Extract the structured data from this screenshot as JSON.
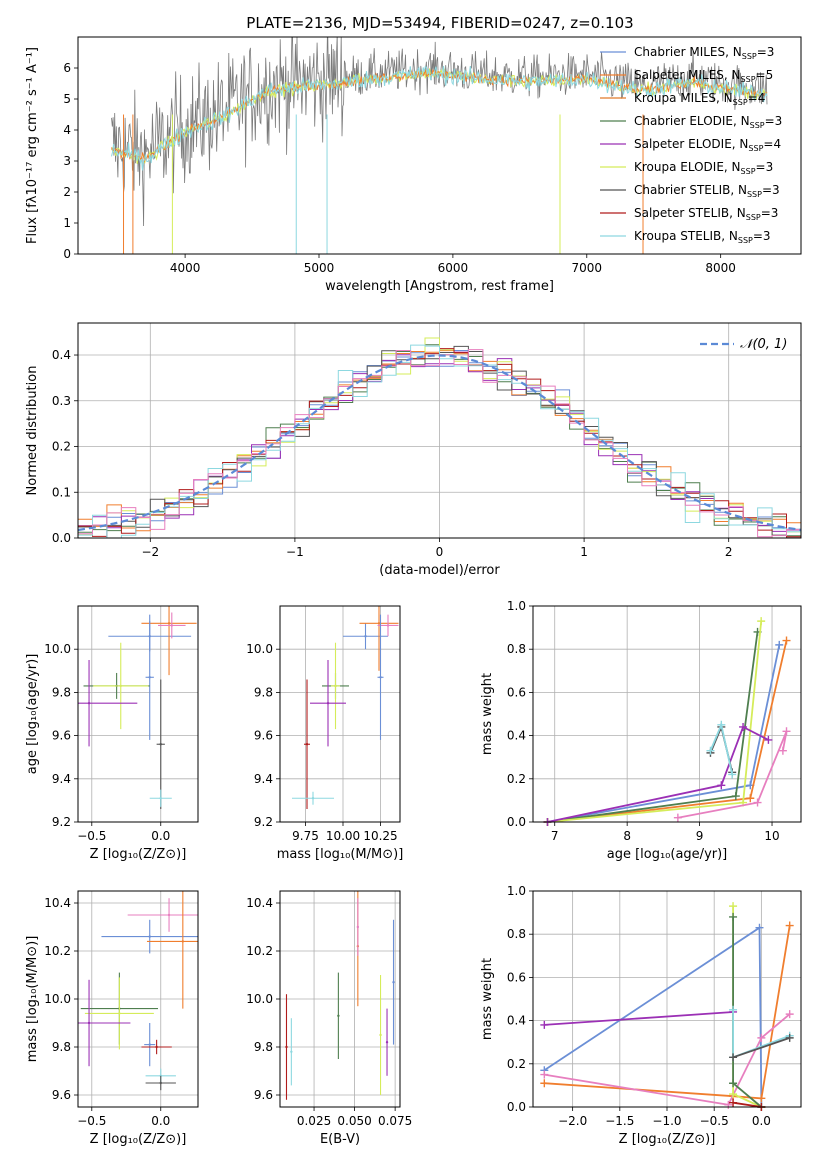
{
  "figure_title": "PLATE=2136, MJD=53494, FIBERID=0247, z=0.103",
  "colors": {
    "Chabrier MILES": "#6b8fd6",
    "Salpeter MILES": "#f07e2e",
    "Kroupa MILES": "#e07b2a",
    "Chabrier ELODIE": "#4f7f4f",
    "Salpeter ELODIE": "#9b30b5",
    "Kroupa ELODIE": "#d5ec5a",
    "Chabrier STELIB": "#555555",
    "Salpeter STELIB": "#b01c1c",
    "Kroupa STELIB": "#8dd8e0",
    "pink": "#e77fbf",
    "cyan": "#6fd3d8",
    "grid": "#b0b0b0"
  },
  "legend_entries": [
    {
      "label": "Chabrier MILES, N",
      "sub": "SSP",
      "eq": "=3",
      "color": "#6b8fd6"
    },
    {
      "label": "Salpeter MILES, N",
      "sub": "SSP",
      "eq": "=5",
      "color": "#f07e2e"
    },
    {
      "label": "Kroupa MILES, N",
      "sub": "SSP",
      "eq": "=4",
      "color": "#e07b2a"
    },
    {
      "label": "Chabrier ELODIE, N",
      "sub": "SSP",
      "eq": "=3",
      "color": "#4f7f4f"
    },
    {
      "label": "Salpeter ELODIE, N",
      "sub": "SSP",
      "eq": "=4",
      "color": "#9b30b5"
    },
    {
      "label": "Kroupa ELODIE, N",
      "sub": "SSP",
      "eq": "=3",
      "color": "#d5ec5a"
    },
    {
      "label": "Chabrier STELIB, N",
      "sub": "SSP",
      "eq": "=3",
      "color": "#555555"
    },
    {
      "label": "Salpeter STELIB, N",
      "sub": "SSP",
      "eq": "=3",
      "color": "#b01c1c"
    },
    {
      "label": "Kroupa STELIB, N",
      "sub": "SSP",
      "eq": "=3",
      "color": "#8dd8e0"
    }
  ],
  "hist_legend": "𝒩(0, 1)",
  "chart_data": [
    {
      "id": "spectrum",
      "type": "line",
      "xlabel": "wavelength [Angstrom, rest frame]",
      "ylabel": "Flux [fλ10⁻¹⁷ erg cm⁻² s⁻¹ A⁻¹]",
      "xlim": [
        3200,
        8600
      ],
      "ylim": [
        0,
        7
      ],
      "xticks": [
        4000,
        5000,
        6000,
        7000,
        8000
      ],
      "yticks": [
        0,
        1,
        2,
        3,
        4,
        5,
        6
      ],
      "grid": false,
      "continuum": {
        "x": [
          3450,
          3700,
          4000,
          4300,
          4600,
          5000,
          5400,
          5800,
          6200,
          6600,
          7000,
          7400,
          7800,
          8000,
          8350
        ],
        "y": [
          3.5,
          3.2,
          4.1,
          4.6,
          5.4,
          5.6,
          5.8,
          6.0,
          5.8,
          5.7,
          5.8,
          5.4,
          5.7,
          5.5,
          5.3
        ]
      },
      "range_x": [
        3450,
        8350
      ]
    },
    {
      "id": "residuals",
      "type": "line",
      "xlabel": "(data-model)/error",
      "ylabel": "Normed distribution",
      "xlim": [
        -2.5,
        2.5
      ],
      "ylim": [
        0,
        0.47
      ],
      "xticks": [
        -2,
        -1,
        0,
        1,
        2
      ],
      "yticks": [
        0.0,
        0.1,
        0.2,
        0.3,
        0.4
      ],
      "xtick_labels": [
        "−2",
        "−1",
        "0",
        "1",
        "2"
      ],
      "ytick_labels": [
        "0.0",
        "0.1",
        "0.2",
        "0.3",
        "0.4"
      ],
      "grid": true,
      "legend": "top-right"
    },
    {
      "id": "z_age",
      "type": "scatter",
      "xlabel": "Z [log₁₀(Z/Z⊙)]",
      "ylabel": "age  [log₁₀(age/yr)]",
      "xlim": [
        -0.6,
        0.27
      ],
      "ylim": [
        9.2,
        10.2
      ],
      "xticks": [
        -0.5,
        0.0
      ],
      "yticks": [
        9.2,
        9.4,
        9.6,
        9.8,
        10.0
      ],
      "xtick_labels": [
        "−0.5",
        "0.0"
      ],
      "ytick_labels": [
        "9.2",
        "9.4",
        "9.6",
        "9.8",
        "10.0"
      ],
      "grid": true,
      "points": [
        {
          "x": -0.08,
          "y": 10.06,
          "xerr": 0.3,
          "yerr": 0.07,
          "c": "#6b8fd6"
        },
        {
          "x": 0.06,
          "y": 10.12,
          "xerr": 0.2,
          "yerr": 0.24,
          "c": "#f07e2e"
        },
        {
          "x": 0.08,
          "y": 10.11,
          "xerr": 0.1,
          "yerr": 0.06,
          "c": "#e77fbf"
        },
        {
          "x": -0.08,
          "y": 9.87,
          "xerr": 0.03,
          "yerr": 0.29,
          "c": "#6b8fd6"
        },
        {
          "x": -0.32,
          "y": 9.83,
          "xerr": 0.24,
          "yerr": 0.06,
          "c": "#4f7f4f"
        },
        {
          "x": -0.29,
          "y": 9.83,
          "xerr": 0.2,
          "yerr": 0.2,
          "c": "#d5ec5a"
        },
        {
          "x": -0.52,
          "y": 9.75,
          "xerr": 0.35,
          "yerr": 0.2,
          "c": "#9b30b5"
        },
        {
          "x": 0.0,
          "y": 9.56,
          "xerr": 0.03,
          "yerr": 0.3,
          "c": "#555555"
        },
        {
          "x": 0.0,
          "y": 9.31,
          "xerr": 0.08,
          "yerr": 0.04,
          "c": "#8dd8e0"
        }
      ]
    },
    {
      "id": "mass_age",
      "type": "scatter",
      "xlabel": "mass [log₁₀(M/M⊙)]",
      "ylabel": "",
      "xlim": [
        9.58,
        10.38
      ],
      "ylim": [
        9.2,
        10.2
      ],
      "xticks": [
        9.75,
        10.0,
        10.25
      ],
      "yticks": [
        9.2,
        9.4,
        9.6,
        9.8,
        10.0
      ],
      "xtick_labels": [
        "9.75",
        "10.00",
        "10.25"
      ],
      "ytick_labels": [
        "9.2",
        "9.4",
        "9.6",
        "9.8",
        "10.0"
      ],
      "grid": true,
      "points": [
        {
          "x": 10.15,
          "y": 10.06,
          "xerr": 0.15,
          "yerr": 0.06,
          "c": "#6b8fd6"
        },
        {
          "x": 10.24,
          "y": 10.12,
          "xerr": 0.13,
          "yerr": 0.22,
          "c": "#f07e2e"
        },
        {
          "x": 10.3,
          "y": 10.11,
          "xerr": 0.07,
          "yerr": 0.05,
          "c": "#e77fbf"
        },
        {
          "x": 10.25,
          "y": 9.87,
          "xerr": 0.02,
          "yerr": 0.29,
          "c": "#6b8fd6"
        },
        {
          "x": 9.95,
          "y": 9.83,
          "xerr": 0.09,
          "yerr": 0.06,
          "c": "#4f7f4f"
        },
        {
          "x": 9.95,
          "y": 9.83,
          "xerr": 0.03,
          "yerr": 0.2,
          "c": "#d5ec5a"
        },
        {
          "x": 9.9,
          "y": 9.75,
          "xerr": 0.12,
          "yerr": 0.2,
          "c": "#9b30b5"
        },
        {
          "x": 9.76,
          "y": 9.56,
          "xerr": 0.02,
          "yerr": 0.3,
          "c": "#b01c1c"
        },
        {
          "x": 9.8,
          "y": 9.31,
          "xerr": 0.14,
          "yerr": 0.03,
          "c": "#8dd8e0"
        }
      ]
    },
    {
      "id": "age_weight",
      "type": "line",
      "xlabel": "age  [log₁₀(age/yr)]",
      "ylabel": "mass weight",
      "xlim": [
        6.7,
        10.4
      ],
      "ylim": [
        0,
        1.0
      ],
      "xticks": [
        7,
        8,
        9,
        10
      ],
      "yticks": [
        0.0,
        0.2,
        0.4,
        0.6,
        0.8,
        1.0
      ],
      "xtick_labels": [
        "7",
        "8",
        "9",
        "10"
      ],
      "ytick_labels": [
        "0.0",
        "0.2",
        "0.4",
        "0.6",
        "0.8",
        "1.0"
      ],
      "grid": true,
      "series": [
        {
          "c": "#6b8fd6",
          "x": [
            6.9,
            9.7,
            10.1
          ],
          "y": [
            0.0,
            0.17,
            0.82
          ]
        },
        {
          "c": "#f07e2e",
          "x": [
            6.9,
            9.7,
            10.2
          ],
          "y": [
            0.0,
            0.11,
            0.84
          ]
        },
        {
          "c": "#4f7f4f",
          "x": [
            6.9,
            9.5,
            9.8
          ],
          "y": [
            0.0,
            0.12,
            0.88
          ]
        },
        {
          "c": "#d5ec5a",
          "x": [
            6.9,
            9.6,
            9.85
          ],
          "y": [
            0.0,
            0.09,
            0.93
          ]
        },
        {
          "c": "#9b30b5",
          "x": [
            6.9,
            9.3,
            9.6,
            9.95
          ],
          "y": [
            0.0,
            0.17,
            0.44,
            0.38
          ]
        },
        {
          "c": "#e77fbf",
          "x": [
            8.7,
            9.8,
            10.2,
            10.15
          ],
          "y": [
            0.02,
            0.09,
            0.42,
            0.33
          ]
        },
        {
          "c": "#555555",
          "x": [
            9.15,
            9.3,
            9.45
          ],
          "y": [
            0.32,
            0.44,
            0.23
          ]
        },
        {
          "c": "#8dd8e0",
          "x": [
            9.15,
            9.3,
            9.45
          ],
          "y": [
            0.33,
            0.45,
            0.22
          ]
        }
      ]
    },
    {
      "id": "z_mass",
      "type": "scatter",
      "xlabel": "Z [log₁₀(Z/Z⊙)]",
      "ylabel": "mass [log₁₀(M/M⊙)]",
      "xlim": [
        -0.6,
        0.27
      ],
      "ylim": [
        9.55,
        10.45
      ],
      "xticks": [
        -0.5,
        0.0
      ],
      "yticks": [
        9.6,
        9.8,
        10.0,
        10.2,
        10.4
      ],
      "xtick_labels": [
        "−0.5",
        "0.0"
      ],
      "ytick_labels": [
        "9.6",
        "9.8",
        "10.0",
        "10.2",
        "10.4"
      ],
      "grid": true,
      "points": [
        {
          "x": -0.08,
          "y": 10.26,
          "xerr": 0.35,
          "yerr": 0.07,
          "c": "#6b8fd6"
        },
        {
          "x": 0.06,
          "y": 10.35,
          "xerr": 0.3,
          "yerr": 0.07,
          "c": "#e77fbf"
        },
        {
          "x": 0.16,
          "y": 10.24,
          "xerr": 0.26,
          "yerr": 0.28,
          "c": "#f07e2e"
        },
        {
          "x": -0.3,
          "y": 9.96,
          "xerr": 0.28,
          "yerr": 0.15,
          "c": "#4f7f4f"
        },
        {
          "x": -0.3,
          "y": 9.94,
          "xerr": 0.25,
          "yerr": 0.15,
          "c": "#d5ec5a"
        },
        {
          "x": -0.52,
          "y": 9.9,
          "xerr": 0.3,
          "yerr": 0.18,
          "c": "#9b30b5"
        },
        {
          "x": -0.08,
          "y": 9.81,
          "xerr": 0.04,
          "yerr": 0.09,
          "c": "#6b8fd6"
        },
        {
          "x": -0.03,
          "y": 9.8,
          "xerr": 0.11,
          "yerr": 0.03,
          "c": "#b01c1c"
        },
        {
          "x": 0.0,
          "y": 9.68,
          "xerr": 0.11,
          "yerr": 0.03,
          "c": "#8dd8e0"
        },
        {
          "x": 0.0,
          "y": 9.65,
          "xerr": 0.11,
          "yerr": 0.03,
          "c": "#555555"
        }
      ]
    },
    {
      "id": "ebv_mass",
      "type": "scatter",
      "xlabel": "E(B-V)",
      "ylabel": "",
      "xlim": [
        0.004,
        0.078
      ],
      "ylim": [
        9.55,
        10.45
      ],
      "xticks": [
        0.025,
        0.05,
        0.075
      ],
      "yticks": [
        9.6,
        9.8,
        10.0,
        10.2,
        10.4
      ],
      "xtick_labels": [
        "0.025",
        "0.050",
        "0.075"
      ],
      "ytick_labels": [
        "9.6",
        "9.8",
        "10.0",
        "10.2",
        "10.4"
      ],
      "grid": true,
      "points": [
        {
          "x": 0.074,
          "y": 10.07,
          "xerr": 0,
          "yerr": 0.26,
          "c": "#6b8fd6"
        },
        {
          "x": 0.052,
          "y": 10.22,
          "xerr": 0,
          "yerr": 0.25,
          "c": "#f07e2e"
        },
        {
          "x": 0.052,
          "y": 10.3,
          "xerr": 0,
          "yerr": 0.12,
          "c": "#e77fbf"
        },
        {
          "x": 0.04,
          "y": 9.93,
          "xerr": 0,
          "yerr": 0.18,
          "c": "#4f7f4f"
        },
        {
          "x": 0.066,
          "y": 9.85,
          "xerr": 0,
          "yerr": 0.25,
          "c": "#d5ec5a"
        },
        {
          "x": 0.07,
          "y": 9.82,
          "xerr": 0,
          "yerr": 0.14,
          "c": "#9b30b5"
        },
        {
          "x": 0.008,
          "y": 9.8,
          "xerr": 0,
          "yerr": 0.22,
          "c": "#b01c1c"
        },
        {
          "x": 0.011,
          "y": 9.78,
          "xerr": 0,
          "yerr": 0.14,
          "c": "#8dd8e0"
        }
      ]
    },
    {
      "id": "z_weight",
      "type": "line",
      "xlabel": "Z [log₁₀(Z/Z⊙)]",
      "ylabel": "mass weight",
      "xlim": [
        -2.42,
        0.42
      ],
      "ylim": [
        0,
        1.0
      ],
      "xticks": [
        -2.0,
        -1.5,
        -1.0,
        -0.5,
        0.0
      ],
      "yticks": [
        0.0,
        0.2,
        0.4,
        0.6,
        0.8,
        1.0
      ],
      "xtick_labels": [
        "−2.0",
        "−1.5",
        "−1.0",
        "−0.5",
        "0.0"
      ],
      "ytick_labels": [
        "0.0",
        "0.2",
        "0.4",
        "0.6",
        "0.8",
        "1.0"
      ],
      "grid": true,
      "series": [
        {
          "c": "#6b8fd6",
          "x": [
            -2.3,
            -0.02,
            0.0
          ],
          "y": [
            0.17,
            0.83,
            0.0
          ]
        },
        {
          "c": "#f07e2e",
          "x": [
            -2.3,
            -0.3,
            0.0,
            0.3
          ],
          "y": [
            0.11,
            0.05,
            0.04,
            0.84
          ]
        },
        {
          "c": "#9b30b5",
          "x": [
            -2.3,
            -0.3
          ],
          "y": [
            0.38,
            0.44
          ]
        },
        {
          "c": "#e77fbf",
          "x": [
            -2.3,
            -0.35,
            0.0,
            0.3
          ],
          "y": [
            0.15,
            0.01,
            0.32,
            0.43
          ]
        },
        {
          "c": "#d5ec5a",
          "x": [
            -0.3,
            -0.3,
            0.0
          ],
          "y": [
            0.93,
            0.06,
            0.0
          ]
        },
        {
          "c": "#4f7f4f",
          "x": [
            -0.3,
            -0.3,
            0.0
          ],
          "y": [
            0.88,
            0.11,
            0.0
          ]
        },
        {
          "c": "#8dd8e0",
          "x": [
            -0.3,
            -0.3,
            0.3
          ],
          "y": [
            0.45,
            0.23,
            0.33
          ]
        },
        {
          "c": "#555555",
          "x": [
            -0.3,
            0.3
          ],
          "y": [
            0.23,
            0.32
          ]
        },
        {
          "c": "#b01c1c",
          "x": [
            -0.3,
            0.0
          ],
          "y": [
            0.02,
            0.0
          ]
        }
      ]
    }
  ]
}
